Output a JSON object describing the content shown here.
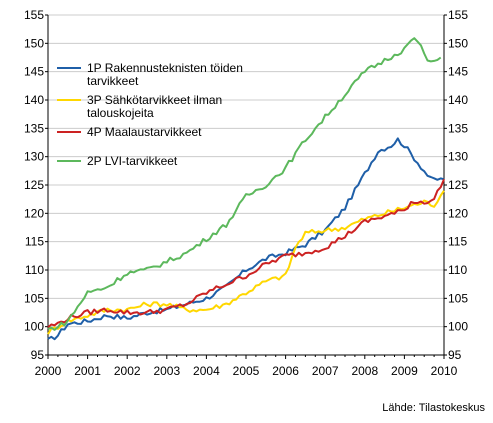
{
  "chart_data": {
    "type": "line",
    "x_start": 2000,
    "x_end": 2010,
    "points_per_year": 12,
    "x_ticks": [
      "2000",
      "2001",
      "2002",
      "2003",
      "2004",
      "2005",
      "2006",
      "2007",
      "2008",
      "2009",
      "2010"
    ],
    "ylim": [
      95,
      155
    ],
    "y_ticks": [
      95,
      100,
      105,
      110,
      115,
      120,
      125,
      130,
      135,
      140,
      145,
      150,
      155
    ],
    "y_axis_both_sides": true,
    "grid": "horizontal",
    "legend_position": "top-left",
    "source": "Lähde: Tilastokeskus",
    "series": [
      {
        "name": "1P Rakennusteknisten töiden tarvikkeet",
        "legend_lines": [
          "1P Rakennusteknisten töiden",
          "tarvikkeet"
        ],
        "color": "#1f5fa8",
        "keyframes": [
          [
            0,
            97.5
          ],
          [
            3,
            98.5
          ],
          [
            6,
            100.5
          ],
          [
            12,
            101
          ],
          [
            18,
            102
          ],
          [
            24,
            101.5
          ],
          [
            30,
            102.5
          ],
          [
            36,
            103
          ],
          [
            42,
            104
          ],
          [
            48,
            105
          ],
          [
            54,
            107
          ],
          [
            60,
            110
          ],
          [
            66,
            112
          ],
          [
            72,
            113
          ],
          [
            78,
            114.5
          ],
          [
            84,
            117
          ],
          [
            90,
            121
          ],
          [
            96,
            127
          ],
          [
            100,
            131
          ],
          [
            104,
            132
          ],
          [
            106,
            133
          ],
          [
            108,
            132
          ],
          [
            112,
            129
          ],
          [
            116,
            126
          ],
          [
            120,
            126
          ]
        ]
      },
      {
        "name": "3P Sähkötarvikkeet ilman talouskojeita",
        "legend_lines": [
          "3P Sähkötarvikkeet ilman",
          "talouskojeita"
        ],
        "color": "#ffd700",
        "keyframes": [
          [
            0,
            99
          ],
          [
            6,
            101
          ],
          [
            12,
            102
          ],
          [
            18,
            103
          ],
          [
            24,
            103
          ],
          [
            30,
            104
          ],
          [
            36,
            104
          ],
          [
            42,
            103
          ],
          [
            48,
            103
          ],
          [
            54,
            104
          ],
          [
            60,
            106
          ],
          [
            66,
            108
          ],
          [
            72,
            109
          ],
          [
            75,
            114
          ],
          [
            78,
            116.5
          ],
          [
            84,
            117
          ],
          [
            90,
            117.5
          ],
          [
            96,
            119
          ],
          [
            102,
            120
          ],
          [
            108,
            121
          ],
          [
            114,
            122
          ],
          [
            117,
            121.5
          ],
          [
            120,
            124
          ]
        ]
      },
      {
        "name": "4P Maalaustarvikkeet",
        "legend_lines": [
          "4P Maalaustarvikkeet"
        ],
        "color": "#cc2222",
        "keyframes": [
          [
            0,
            100
          ],
          [
            3,
            100.5
          ],
          [
            6,
            101.5
          ],
          [
            12,
            102.5
          ],
          [
            18,
            103
          ],
          [
            24,
            102.5
          ],
          [
            30,
            102.5
          ],
          [
            36,
            103
          ],
          [
            42,
            104
          ],
          [
            48,
            106
          ],
          [
            54,
            107.5
          ],
          [
            60,
            109
          ],
          [
            66,
            111
          ],
          [
            72,
            112.5
          ],
          [
            78,
            113
          ],
          [
            84,
            114
          ],
          [
            90,
            116
          ],
          [
            96,
            118.5
          ],
          [
            102,
            119.5
          ],
          [
            108,
            120.5
          ],
          [
            110,
            122
          ],
          [
            114,
            122
          ],
          [
            117,
            122.5
          ],
          [
            120,
            126
          ]
        ]
      },
      {
        "name": "2P LVI-tarvikkeet",
        "legend_lines": [
          "2P LVI-tarvikkeet"
        ],
        "color": "#5cb85c",
        "keyframes": [
          [
            0,
            99.5
          ],
          [
            3,
            100
          ],
          [
            6,
            101
          ],
          [
            9,
            103.5
          ],
          [
            12,
            106
          ],
          [
            18,
            107
          ],
          [
            24,
            109.5
          ],
          [
            30,
            110
          ],
          [
            36,
            111.5
          ],
          [
            42,
            113
          ],
          [
            48,
            115.5
          ],
          [
            54,
            118
          ],
          [
            60,
            123
          ],
          [
            66,
            125
          ],
          [
            72,
            128
          ],
          [
            78,
            133
          ],
          [
            84,
            137
          ],
          [
            90,
            141
          ],
          [
            96,
            145
          ],
          [
            102,
            147
          ],
          [
            108,
            149
          ],
          [
            110,
            150.5
          ],
          [
            112,
            150.5
          ],
          [
            115,
            147
          ],
          [
            117,
            146.5
          ],
          [
            119,
            147.5
          ]
        ]
      }
    ]
  }
}
